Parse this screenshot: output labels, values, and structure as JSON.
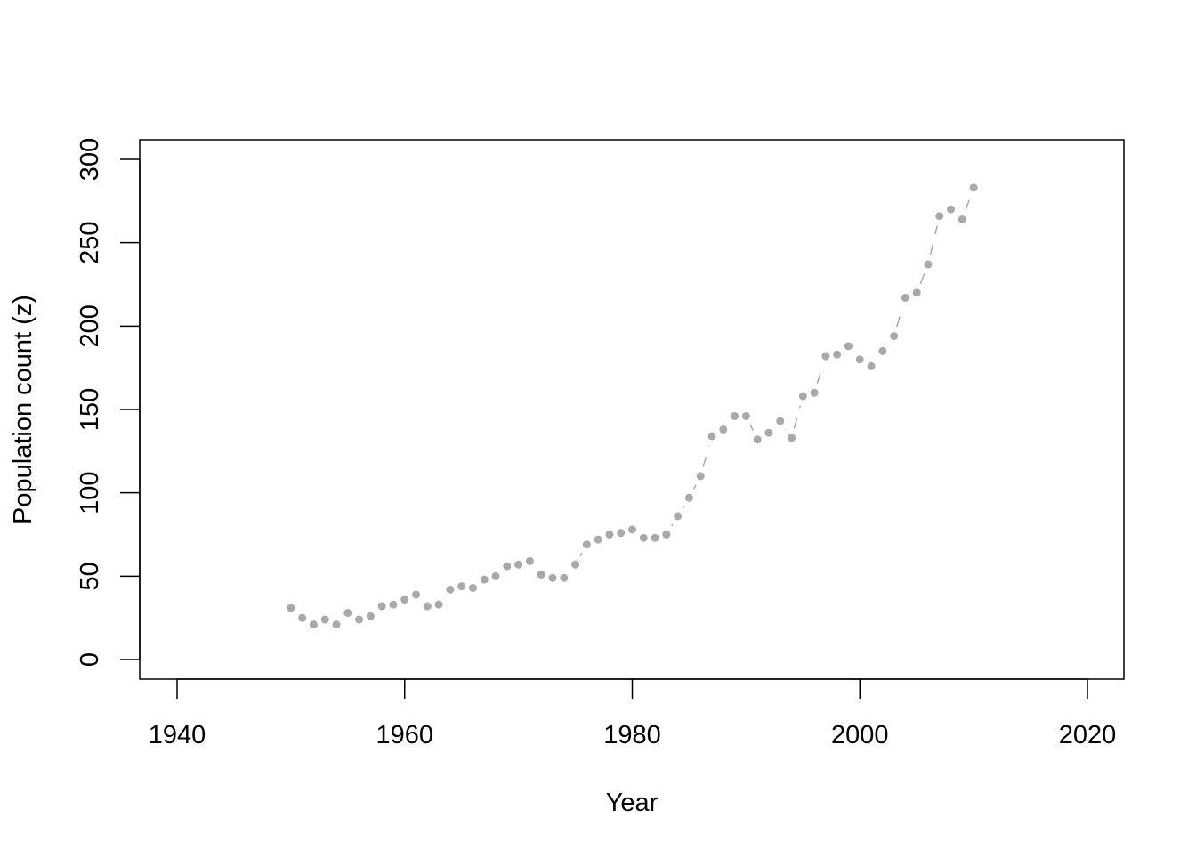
{
  "chart_data": {
    "type": "line",
    "title": "",
    "xlabel": "Year",
    "ylabel": "Population count (z)",
    "xlim": [
      1937,
      2023
    ],
    "ylim": [
      -11,
      312
    ],
    "x_ticks": [
      1940,
      1960,
      1980,
      2000,
      2020
    ],
    "y_ticks": [
      0,
      50,
      100,
      150,
      200,
      250,
      300
    ],
    "grid": false,
    "legend": "none",
    "line_style": "dashed, points with gaps (type b)",
    "color": "#a9a9a9",
    "x": [
      1950,
      1951,
      1952,
      1953,
      1954,
      1955,
      1956,
      1957,
      1958,
      1959,
      1960,
      1961,
      1962,
      1963,
      1964,
      1965,
      1966,
      1967,
      1968,
      1969,
      1970,
      1971,
      1972,
      1973,
      1974,
      1975,
      1976,
      1977,
      1978,
      1979,
      1980,
      1981,
      1982,
      1983,
      1984,
      1985,
      1986,
      1987,
      1988,
      1989,
      1990,
      1991,
      1992,
      1993,
      1994,
      1995,
      1996,
      1997,
      1998,
      1999,
      2000,
      2001,
      2002,
      2003,
      2004,
      2005,
      2006,
      2007,
      2008,
      2009,
      2010
    ],
    "y": [
      31,
      25,
      21,
      24,
      21,
      28,
      24,
      26,
      32,
      33,
      36,
      39,
      32,
      33,
      42,
      44,
      43,
      48,
      50,
      56,
      57,
      59,
      51,
      49,
      49,
      57,
      69,
      72,
      75,
      76,
      78,
      73,
      73,
      75,
      86,
      97,
      110,
      134,
      138,
      146,
      146,
      132,
      136,
      143,
      133,
      158,
      160,
      182,
      183,
      188,
      180,
      176,
      185,
      194,
      217,
      220,
      237,
      266,
      270,
      264,
      283
    ]
  }
}
